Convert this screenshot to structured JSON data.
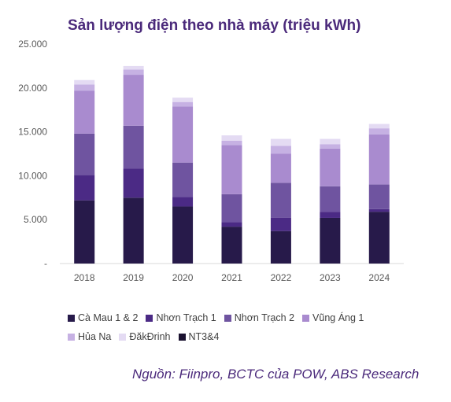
{
  "chart_data": {
    "type": "bar",
    "stacked": true,
    "title": "Sản lượng điện theo nhà máy (triệu kWh)",
    "categories": [
      "2018",
      "2019",
      "2020",
      "2021",
      "2022",
      "2023",
      "2024"
    ],
    "ylim": [
      0,
      25000
    ],
    "yticks": [
      "-",
      "5.000",
      "10.000",
      "15.000",
      "20.000",
      "25.000"
    ],
    "ytick_values": [
      0,
      5000,
      10000,
      15000,
      20000,
      25000
    ],
    "grid": false,
    "legend_position": "bottom",
    "series": [
      {
        "name": "Cà Mau 1 & 2",
        "color": "#271a4a",
        "values": [
          7200,
          7500,
          6500,
          4200,
          3700,
          5200,
          5900
        ]
      },
      {
        "name": "Nhơn Trạch 1",
        "color": "#4b2a85",
        "values": [
          2900,
          3300,
          1100,
          500,
          1500,
          700,
          300
        ]
      },
      {
        "name": "Nhơn Trạch 2",
        "color": "#6f54a0",
        "values": [
          4700,
          4900,
          3900,
          3200,
          4000,
          2900,
          2800
        ]
      },
      {
        "name": "Vũng Áng 1",
        "color": "#a98bcf",
        "values": [
          4900,
          5800,
          6400,
          5600,
          3300,
          4300,
          5700
        ]
      },
      {
        "name": "Hủa Na",
        "color": "#c6b1e3",
        "values": [
          700,
          600,
          500,
          500,
          900,
          500,
          700
        ]
      },
      {
        "name": "ĐăkĐrinh",
        "color": "#e4dbf3",
        "values": [
          500,
          400,
          500,
          600,
          800,
          600,
          500
        ]
      },
      {
        "name": "NT3&4",
        "color": "#1a1230",
        "values": [
          0,
          0,
          0,
          0,
          0,
          0,
          0
        ]
      }
    ]
  },
  "legend_rows": [
    [
      0,
      1,
      2,
      3
    ],
    [
      4,
      5,
      6
    ]
  ],
  "source": "Nguồn: Fiinpro, BCTC của POW, ABS Research"
}
